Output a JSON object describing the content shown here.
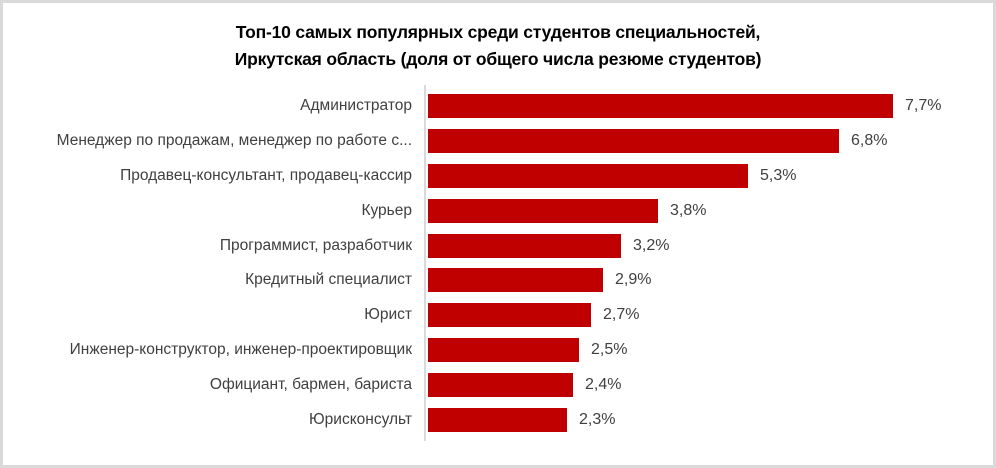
{
  "title": {
    "line1": "Топ-10 самых популярных среди студентов специальностей,",
    "line2": "Иркутская область (доля от общего числа резюме студентов)"
  },
  "chart_data": {
    "type": "bar",
    "orientation": "horizontal",
    "title": "Топ-10 самых популярных среди студентов специальностей, Иркутская область (доля от общего числа резюме студентов)",
    "categories": [
      "Администратор",
      "Менеджер по продажам, менеджер по работе с...",
      "Продавец-консультант, продавец-кассир",
      "Курьер",
      "Программист, разработчик",
      "Кредитный специалист",
      "Юрист",
      "Инженер-конструктор, инженер-проектировщик",
      "Официант, бармен, бариста",
      "Юрисконсульт"
    ],
    "values": [
      7.7,
      6.8,
      5.3,
      3.8,
      3.2,
      2.9,
      2.7,
      2.5,
      2.4,
      2.3
    ],
    "value_labels": [
      "7,7%",
      "6,8%",
      "5,3%",
      "3,8%",
      "3,2%",
      "2,9%",
      "2,7%",
      "2,5%",
      "2,4%",
      "2,3%"
    ],
    "value_unit": "%",
    "xlim": [
      0,
      8
    ],
    "grid": false,
    "legend": "none",
    "data_labels": "outside-end"
  },
  "colors": {
    "bar": "#c00000",
    "axis_line": "#d9d9d9",
    "frame_border": "#d9d9d9",
    "label_text": "#404040",
    "title_text": "#000000",
    "background": "#ffffff"
  }
}
